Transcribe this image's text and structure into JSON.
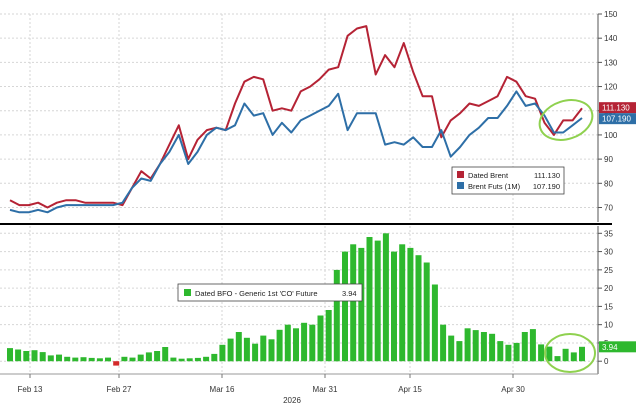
{
  "chart_data": [
    {
      "type": "line",
      "x_tick_labels": [
        "Feb 13",
        "Feb 27",
        "Mar 16",
        "Mar 31",
        "Apr 15",
        "Apr 30"
      ],
      "y_tick_labels": [
        "70",
        "80",
        "90",
        "100",
        "110",
        "120",
        "130",
        "140",
        "150"
      ],
      "ylim": [
        64,
        150
      ],
      "grid": true,
      "legend_position": "bottom-right",
      "series": [
        {
          "name": "Dated Brent",
          "last_value_label": "111.130",
          "color": "#b52335",
          "values": [
            73,
            71,
            71,
            72,
            70,
            72,
            73,
            73,
            72,
            72,
            72,
            72,
            71,
            78,
            85,
            82,
            88,
            96,
            104,
            90,
            98,
            102,
            103,
            102,
            113,
            122,
            124,
            123,
            110,
            111,
            110,
            118,
            120,
            123,
            127,
            128,
            141,
            144,
            145,
            125,
            133,
            128,
            138,
            126,
            116,
            116,
            99,
            106,
            109,
            113,
            112,
            114,
            116,
            124,
            122,
            116,
            115,
            105,
            100,
            106,
            106,
            111
          ]
        },
        {
          "name": "Brent Futs (1M)",
          "last_value_label": "107.190",
          "color": "#2e6fa7",
          "values": [
            69,
            68,
            68,
            69,
            68,
            70,
            71,
            71,
            71,
            71,
            71,
            71,
            72,
            78,
            82,
            81,
            88,
            93,
            100,
            88,
            93,
            100,
            103,
            102,
            104,
            113,
            108,
            109,
            100,
            105,
            101,
            106,
            108,
            110,
            112,
            117,
            102,
            109,
            109,
            109,
            96,
            97,
            96,
            99,
            95,
            95,
            102,
            91,
            95,
            100,
            103,
            107,
            107,
            112,
            118,
            112,
            113,
            108,
            101,
            101,
            104,
            107
          ]
        }
      ]
    },
    {
      "type": "bar",
      "x_tick_labels": [
        "Feb 13",
        "Feb 27",
        "Mar 16",
        "Mar 31",
        "Apr 15",
        "Apr 30"
      ],
      "x_axis_year": "2026",
      "y_tick_labels": [
        "0",
        "5",
        "10",
        "15",
        "20",
        "25",
        "30",
        "35"
      ],
      "ylim": [
        -3.5,
        37
      ],
      "grid": true,
      "legend_position": "middle-left",
      "series": [
        {
          "name": "Dated BFO - Generic 1st 'CO' Future",
          "last_value_label": "3.94",
          "color": "#2eb82e",
          "negative_color": "#d42a2a",
          "values": [
            3.6,
            3.2,
            2.8,
            3.0,
            2.5,
            1.6,
            1.8,
            1.2,
            1.0,
            1.1,
            0.9,
            0.8,
            1.0,
            -1.2,
            1.2,
            1.0,
            1.8,
            2.4,
            2.8,
            3.9,
            1.0,
            0.7,
            0.8,
            0.9,
            1.2,
            2.0,
            4.5,
            6.2,
            8.0,
            6.4,
            4.8,
            7.0,
            6.0,
            8.6,
            10.0,
            9.0,
            10.5,
            10.0,
            12.5,
            14.0,
            25.0,
            30.0,
            32.0,
            31.0,
            34.0,
            33.0,
            35.0,
            30.0,
            32.0,
            31.0,
            29.0,
            27.0,
            21.0,
            10.0,
            7.0,
            5.5,
            9.0,
            8.5,
            8.0,
            7.5,
            5.5,
            4.5,
            5.0,
            8.0,
            8.8,
            4.6,
            4.0,
            1.4,
            3.4,
            2.4,
            3.94
          ]
        }
      ]
    }
  ]
}
